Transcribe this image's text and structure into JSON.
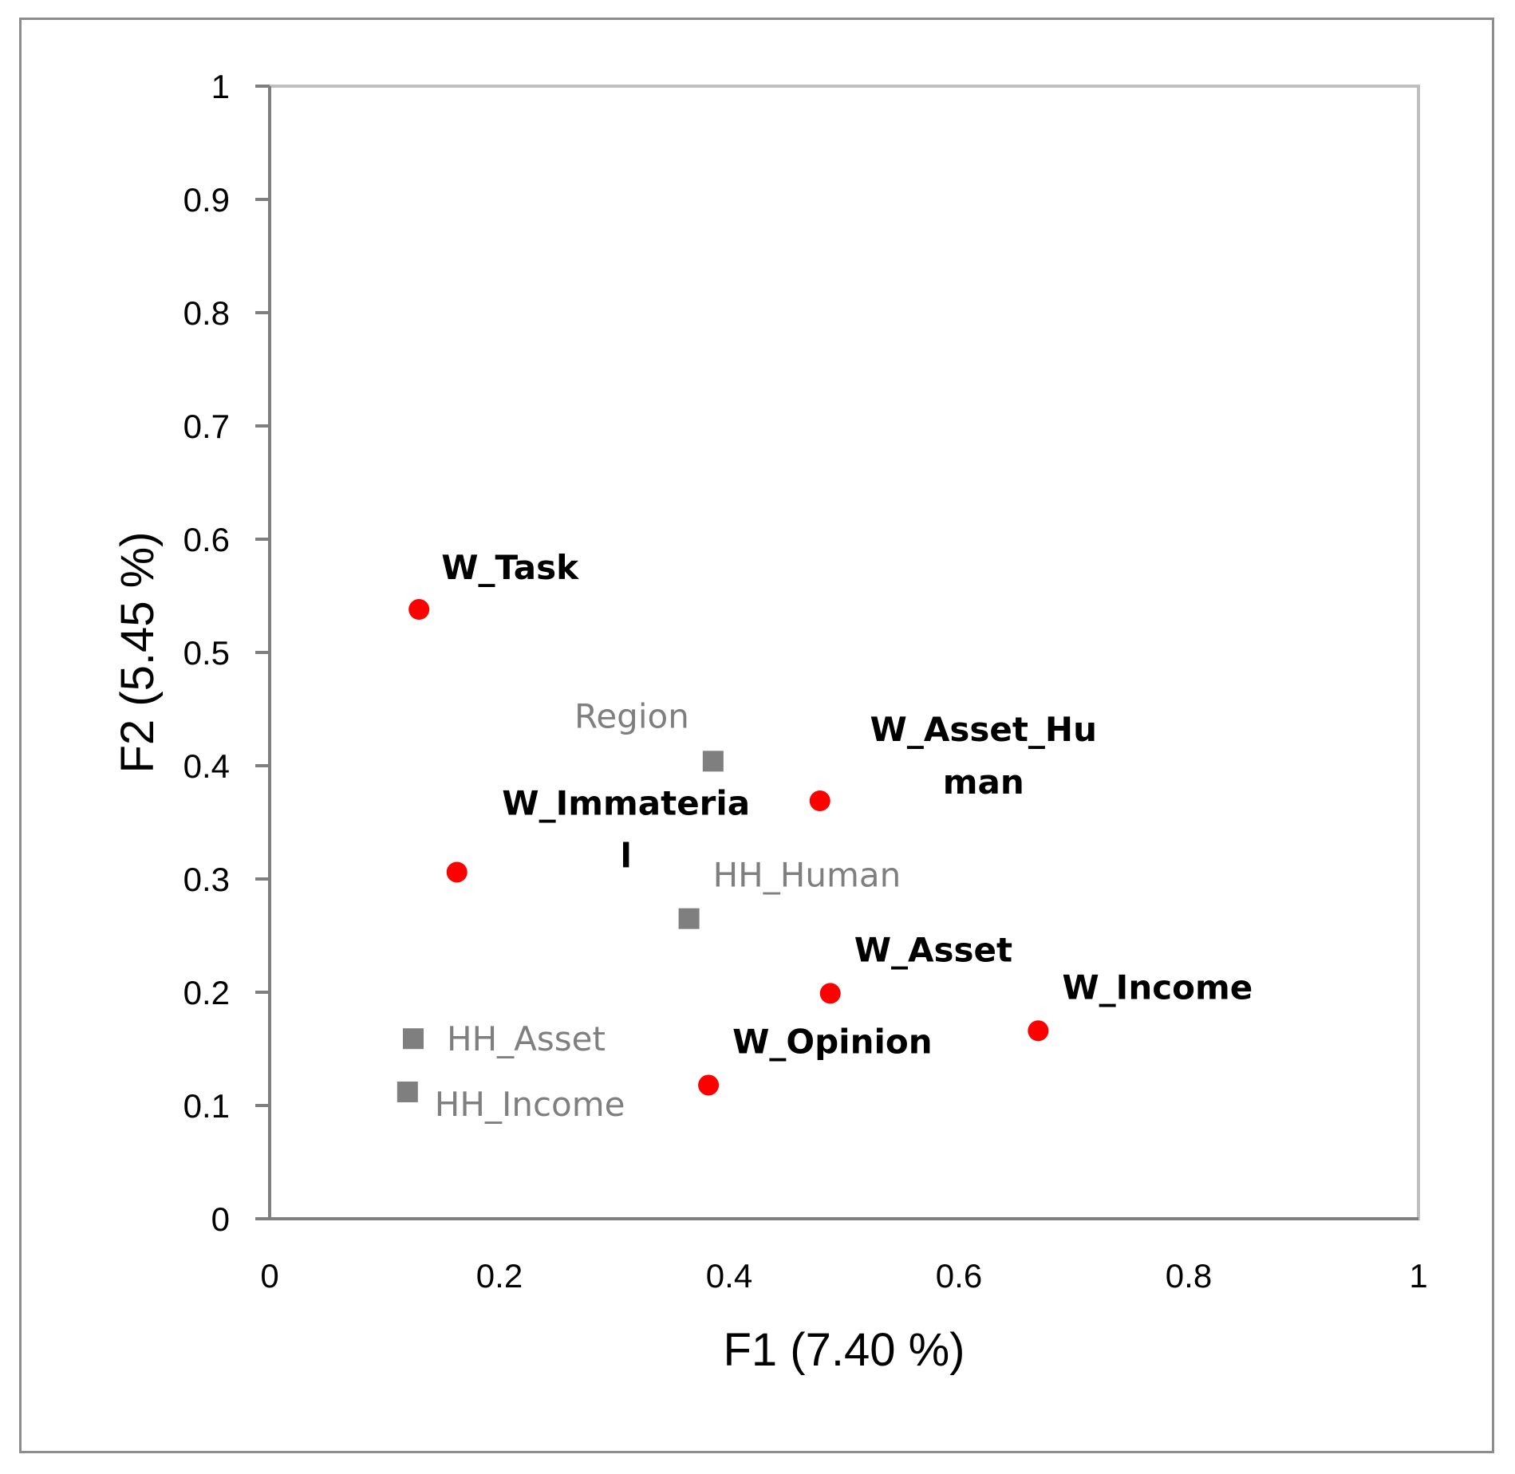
{
  "chart_data": {
    "type": "scatter",
    "title": "",
    "xlabel": "F1 (7.40 %)",
    "ylabel": "F2 (5.45 %)",
    "xlim": [
      0,
      1
    ],
    "ylim": [
      0,
      1
    ],
    "x_ticks": [
      "0",
      "0.2",
      "0.4",
      "0.6",
      "0.8",
      "1"
    ],
    "y_ticks": [
      "0",
      "0.1",
      "0.2",
      "0.3",
      "0.4",
      "0.5",
      "0.6",
      "0.7",
      "0.8",
      "0.9",
      "1"
    ],
    "grid": false,
    "colors": {
      "women": "#ff0000",
      "household": "#7f7f7f"
    },
    "series": [
      {
        "marker": "circle",
        "points": [
          {
            "label": "W_Task",
            "label_lines": [
              "W_Task"
            ],
            "x": 0.13,
            "y": 0.538
          },
          {
            "label": "W_Immaterial",
            "label_lines": [
              "W_Immateria",
              "l"
            ],
            "x": 0.163,
            "y": 0.306
          },
          {
            "label": "W_Asset_Human",
            "label_lines": [
              "W_Asset_Hu",
              "man"
            ],
            "x": 0.479,
            "y": 0.369
          },
          {
            "label": "W_Asset",
            "label_lines": [
              "W_Asset"
            ],
            "x": 0.488,
            "y": 0.199
          },
          {
            "label": "W_Income",
            "label_lines": [
              "W_Income"
            ],
            "x": 0.669,
            "y": 0.166
          },
          {
            "label": "W_Opinion",
            "label_lines": [
              "W_Opinion"
            ],
            "x": 0.382,
            "y": 0.118
          }
        ]
      },
      {
        "marker": "square",
        "points": [
          {
            "label": "Region",
            "label_lines": [
              "Region"
            ],
            "x": 0.386,
            "y": 0.404
          },
          {
            "label": "HH_Human",
            "label_lines": [
              "HH_Human"
            ],
            "x": 0.365,
            "y": 0.265
          },
          {
            "label": "HH_Asset",
            "label_lines": [
              "HH_Asset"
            ],
            "x": 0.125,
            "y": 0.159
          },
          {
            "label": "HH_Income",
            "label_lines": [
              "HH_Income"
            ],
            "x": 0.12,
            "y": 0.112
          }
        ]
      }
    ]
  }
}
